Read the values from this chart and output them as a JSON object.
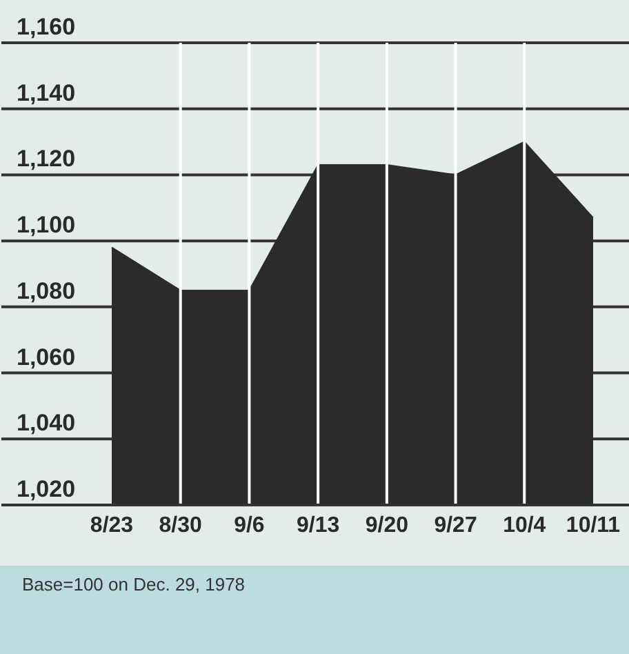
{
  "chart_data": {
    "type": "area",
    "categories": [
      "8/23",
      "8/30",
      "9/6",
      "9/13",
      "9/20",
      "9/27",
      "10/4",
      "10/11"
    ],
    "values": [
      1098,
      1085,
      1085,
      1123,
      1123,
      1120,
      1130,
      1107
    ],
    "color": "#2b2b2b",
    "ylim": [
      1020,
      1160
    ],
    "yticks": [
      {
        "value": 1020,
        "label": "1,020"
      },
      {
        "value": 1040,
        "label": "1,040"
      },
      {
        "value": 1060,
        "label": "1,060"
      },
      {
        "value": 1080,
        "label": "1,080"
      },
      {
        "value": 1100,
        "label": "1,100"
      },
      {
        "value": 1120,
        "label": "1,120"
      },
      {
        "value": 1140,
        "label": "1,140"
      },
      {
        "value": 1160,
        "label": "1,160"
      }
    ],
    "grid": true,
    "annotations": [
      "Base=100 on Dec. 29, 1978"
    ]
  }
}
